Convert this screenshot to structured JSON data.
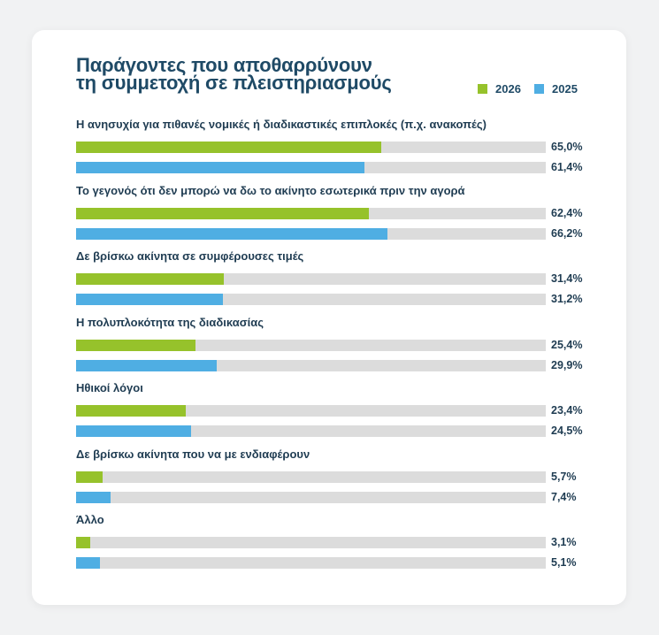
{
  "title_lines": [
    "Παράγοντες που αποθαρρύνουν",
    "τη συμμετοχή σε πλειστηριασμούς"
  ],
  "legend": [
    {
      "name": "2026",
      "color": "#96c22b"
    },
    {
      "name": "2025",
      "color": "#4faee3"
    }
  ],
  "chart_data": {
    "type": "bar",
    "orientation": "horizontal",
    "title": "Παράγοντες που αποθαρρύνουν τη συμμετοχή σε πλειστηριασμούς",
    "xlim": [
      0,
      100
    ],
    "legend_position": "top-right",
    "categories": [
      "Η ανησυχία για πιθανές νομικές ή διαδικαστικές επιπλοκές (π.χ. ανακοπές)",
      "Το γεγονός ότι δεν μπορώ να δω το ακίνητο εσωτερικά πριν την αγορά",
      "Δε βρίσκω ακίνητα σε συμφέρουσες τιμές",
      "Η πολυπλοκότητα της διαδικασίας",
      "Ηθικοί λόγοι",
      "Δε βρίσκω ακίνητα που να με ενδιαφέρουν",
      "Άλλο"
    ],
    "series": [
      {
        "name": "2026",
        "color": "#96c22b",
        "values": [
          65.0,
          62.4,
          31.4,
          25.4,
          23.4,
          5.7,
          3.1
        ],
        "labels": [
          "65,0%",
          "62,4%",
          "31,4%",
          "25,4%",
          "23,4%",
          "5,7%",
          "3,1%"
        ]
      },
      {
        "name": "2025",
        "color": "#4faee3",
        "values": [
          61.4,
          66.2,
          31.2,
          29.9,
          24.5,
          7.4,
          5.1
        ],
        "labels": [
          "61,4%",
          "66,2%",
          "31,2%",
          "29,9%",
          "24,5%",
          "7,4%",
          "5,1%"
        ]
      }
    ]
  }
}
